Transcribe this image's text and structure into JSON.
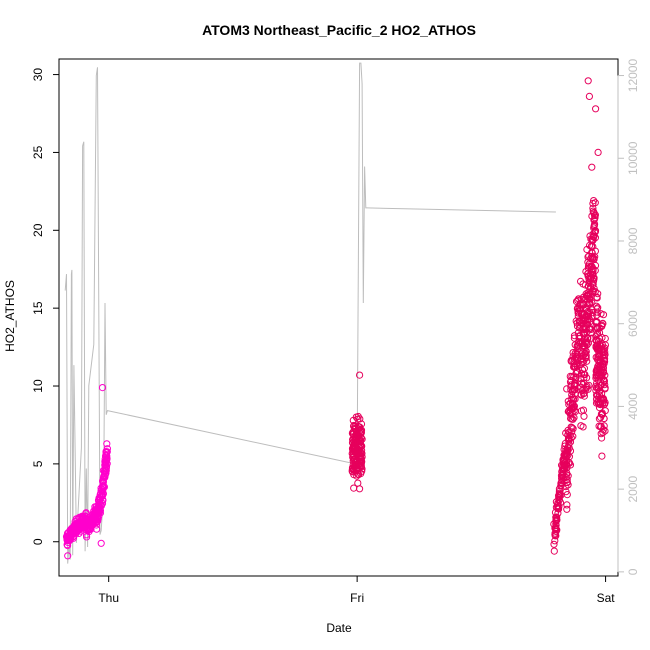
{
  "chart_data": {
    "type": "scatter",
    "title": "ATOM3 Northeast_Pacific_2 HO2_ATHOS",
    "xlabel": "Date",
    "ylabel": "HO2_ATHOS",
    "x_ticks": [
      "Thu",
      "Fri",
      "Sat"
    ],
    "y_ticks": [
      "0",
      "5",
      "10",
      "15",
      "20",
      "25",
      "30"
    ],
    "y2_ticks": [
      "0",
      "2000",
      "4000",
      "6000",
      "8000",
      "10000",
      "12000"
    ],
    "xlim_days": [
      -0.2,
      2.05
    ],
    "ylim": [
      -2.2,
      31
    ],
    "y2lim": [
      -100,
      12400
    ],
    "grid": false,
    "colors": {
      "points_early": "#ff00cc",
      "points_late": "#e6005c",
      "altitude_line": "#bdbdbd",
      "right_axis": "#c0c0c0"
    },
    "series": [
      {
        "kind": "scatter",
        "clusters": [
          {
            "x_range": [
              -0.17,
              -0.09
            ],
            "y_start": 0.2,
            "y_end": 1.5,
            "spread": 0.8,
            "n": 140
          },
          {
            "x_range": [
              -0.09,
              -0.05
            ],
            "y_start": 0.8,
            "y_end": 1.8,
            "spread": 0.8,
            "n": 90
          },
          {
            "x_range": [
              -0.05,
              -0.03
            ],
            "y_start": 1.2,
            "y_end": 3.0,
            "spread": 1.2,
            "n": 50
          },
          {
            "x_range": [
              -0.03,
              -0.005
            ],
            "y_start": 2.5,
            "y_end": 6.0,
            "spread": 1.6,
            "n": 70
          },
          {
            "x_range": [
              0.98,
              1.02
            ],
            "y_start": 6.0,
            "y_end": 6.0,
            "spread": 3.2,
            "n": 150
          },
          {
            "x_range": [
              1.79,
              1.84
            ],
            "y_start": 0.0,
            "y_end": 6.0,
            "spread": 1.6,
            "n": 90
          },
          {
            "x_range": [
              1.84,
              1.9
            ],
            "y_start": 5.0,
            "y_end": 15.0,
            "spread": 5.0,
            "n": 170
          },
          {
            "x_range": [
              1.9,
              1.96
            ],
            "y_start": 10.0,
            "y_end": 20.0,
            "spread": 7.5,
            "n": 220
          },
          {
            "x_range": [
              1.96,
              2.0
            ],
            "y_start": 12.0,
            "y_end": 10.0,
            "spread": 7.0,
            "n": 170
          }
        ],
        "notable_points": [
          {
            "x": -0.025,
            "y": 9.9
          },
          {
            "x": -0.03,
            "y": -0.1
          },
          {
            "x": -0.165,
            "y": -0.9
          },
          {
            "x": 1.01,
            "y": 10.7
          },
          {
            "x": 1.01,
            "y": 3.4
          },
          {
            "x": 1.93,
            "y": 29.6
          },
          {
            "x": 1.935,
            "y": 28.6
          },
          {
            "x": 1.96,
            "y": 27.8
          },
          {
            "x": 1.97,
            "y": 25.0
          },
          {
            "x": 1.985,
            "y": 5.5
          }
        ]
      },
      {
        "kind": "line",
        "axis": "right",
        "x": [
          -0.175,
          -0.17,
          -0.165,
          -0.16,
          -0.155,
          -0.15,
          -0.148,
          -0.145,
          -0.14,
          -0.135,
          -0.13,
          -0.11,
          -0.105,
          -0.1,
          -0.095,
          -0.09,
          -0.085,
          -0.08,
          -0.06,
          -0.05,
          -0.045,
          -0.035,
          -0.03,
          -0.02,
          -0.015,
          -0.01,
          -0.005,
          1.0,
          1.01,
          1.015,
          1.02,
          1.025,
          1.03,
          1.035,
          1.04,
          1.8
        ],
        "y": [
          6800,
          7200,
          200,
          600,
          300,
          7200,
          7300,
          400,
          5000,
          3000,
          700,
          3000,
          10300,
          10400,
          500,
          2500,
          600,
          4500,
          5500,
          12000,
          12200,
          900,
          1000,
          2000,
          6500,
          3800,
          3900,
          2600,
          12300,
          12300,
          11800,
          6500,
          9800,
          8800,
          8800,
          8700
        ]
      }
    ]
  }
}
